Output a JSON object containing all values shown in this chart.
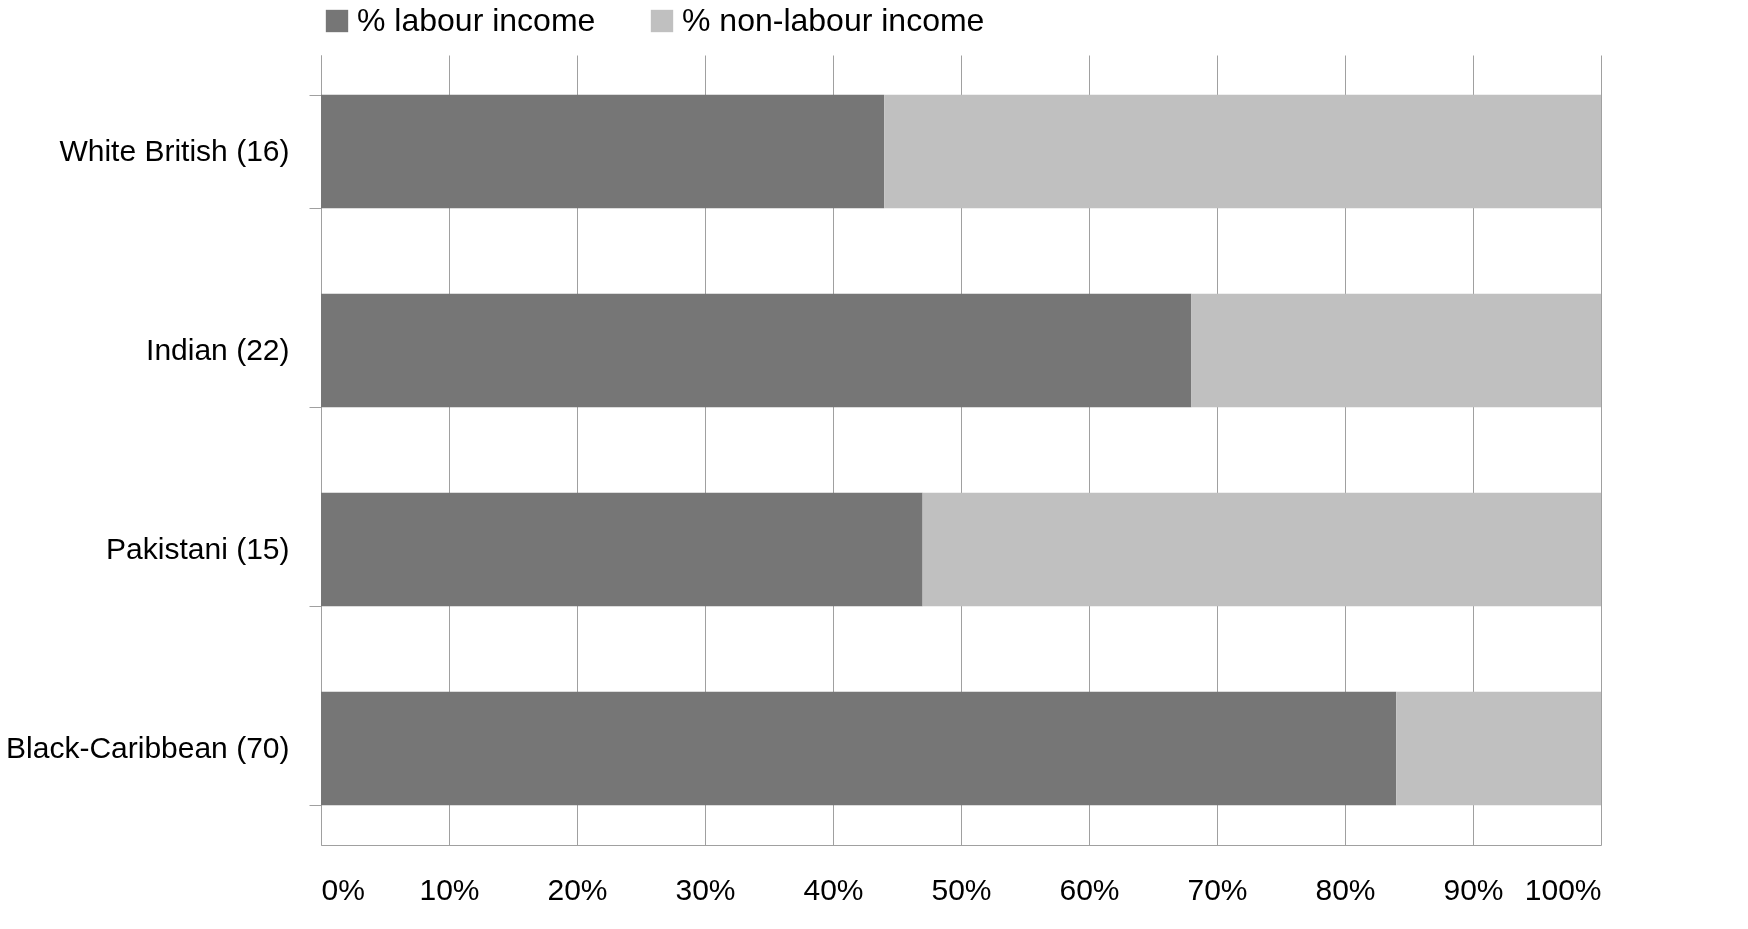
{
  "chart_data": {
    "type": "bar",
    "orientation": "horizontal",
    "stacked": true,
    "categories": [
      "White British (16)",
      "Indian (22)",
      "Pakistani (15)",
      "Black-Caribbean (70)"
    ],
    "series": [
      {
        "name": "% labour income",
        "color": "#767676",
        "values": [
          44,
          68,
          47,
          84
        ]
      },
      {
        "name": "% non-labour income",
        "color": "#c0c0c0",
        "values": [
          56,
          32,
          53,
          16
        ]
      }
    ],
    "xlim": [
      0,
      100
    ],
    "xticks": [
      {
        "value": 0,
        "label": "0%"
      },
      {
        "value": 10,
        "label": "10%"
      },
      {
        "value": 20,
        "label": "20%"
      },
      {
        "value": 30,
        "label": "30%"
      },
      {
        "value": 40,
        "label": "40%"
      },
      {
        "value": 50,
        "label": "50%"
      },
      {
        "value": 60,
        "label": "60%"
      },
      {
        "value": 70,
        "label": "70%"
      },
      {
        "value": 80,
        "label": "80%"
      },
      {
        "value": 90,
        "label": "90%"
      },
      {
        "value": 100,
        "label": "100%"
      }
    ],
    "grid": "x",
    "legend": "top"
  }
}
